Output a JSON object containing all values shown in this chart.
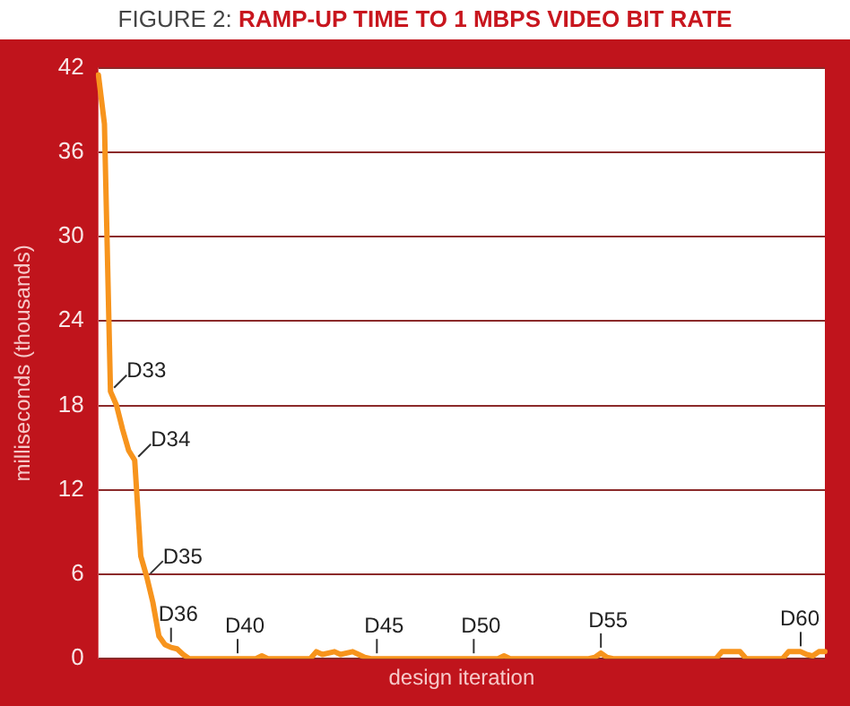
{
  "chart_data": {
    "type": "line",
    "title": "FIGURE 2: RAMP-UP TIME TO 1 MBPS VIDEO BIT RATE",
    "xlabel": "design iteration",
    "ylabel": "milliseconds (thousands)",
    "categories": [
      null,
      null,
      null,
      null,
      null,
      null,
      null,
      null,
      null,
      null,
      null,
      null,
      null,
      null,
      null,
      null,
      null,
      null,
      null,
      null,
      null,
      null,
      null,
      null,
      null,
      null,
      null,
      null,
      null,
      null,
      null,
      null,
      null,
      null,
      null,
      null,
      null,
      null,
      null,
      null,
      null,
      null,
      null,
      null,
      null,
      null,
      null,
      null,
      null,
      null,
      null,
      null,
      null,
      null,
      null,
      null,
      null,
      null,
      null,
      null,
      null,
      null,
      null,
      null,
      null,
      null,
      null,
      null,
      null,
      null,
      null,
      null,
      null,
      null,
      null,
      null,
      null,
      null,
      null,
      null,
      null,
      null,
      null,
      null,
      null,
      null,
      null,
      null,
      null,
      null,
      null,
      null,
      null,
      null,
      null,
      null,
      null,
      null,
      null,
      null,
      null,
      null,
      null,
      null,
      null,
      null,
      null,
      null,
      null,
      null,
      null,
      null,
      null,
      null,
      null,
      null,
      null,
      null,
      null,
      null,
      null
    ],
    "series": [
      {
        "color": "#f7941d",
        "values": [
          41.5,
          38,
          19,
          18,
          16.3,
          14.8,
          14.1,
          7.3,
          5.8,
          4,
          1.6,
          1,
          0.8,
          0.7,
          0.3,
          0,
          0,
          0,
          0,
          0,
          0,
          0,
          0,
          0,
          0,
          0,
          0,
          0.2,
          0,
          0,
          0,
          0,
          0,
          0,
          0,
          0,
          0.5,
          0.3,
          0.4,
          0.5,
          0.3,
          0.4,
          0.5,
          0.3,
          0.1,
          0,
          0,
          0,
          0,
          0,
          0,
          0,
          0,
          0,
          0,
          0,
          0,
          0,
          0,
          0,
          0,
          0,
          0,
          0,
          0,
          0,
          0,
          0.2,
          0,
          0,
          0,
          0,
          0,
          0,
          0,
          0,
          0,
          0,
          0,
          0,
          0,
          0,
          0.1,
          0.4,
          0.1,
          0,
          0,
          0,
          0,
          0,
          0,
          0,
          0,
          0,
          0,
          0,
          0,
          0,
          0,
          0,
          0,
          0,
          0,
          0.5,
          0.5,
          0.5,
          0.5,
          0,
          0,
          0,
          0,
          0,
          0,
          0,
          0.5,
          0.5,
          0.5,
          0.3,
          0.2,
          0.5,
          0.5
        ],
        "value_labels": [
          null,
          null,
          "D33",
          null,
          null,
          null,
          "D34",
          null,
          "D35",
          null,
          null,
          null,
          "D36",
          null,
          null,
          null,
          null,
          null,
          null,
          null,
          null,
          null,
          null,
          "D40",
          null,
          null,
          null,
          null,
          null,
          null,
          null,
          null,
          null,
          null,
          null,
          null,
          null,
          null,
          null,
          null,
          null,
          null,
          null,
          null,
          null,
          null,
          "D45",
          null,
          null,
          null,
          null,
          null,
          null,
          null,
          null,
          null,
          null,
          null,
          null,
          null,
          null,
          null,
          "D50",
          null,
          null,
          null,
          null,
          null,
          null,
          null,
          null,
          null,
          null,
          null,
          null,
          null,
          null,
          null,
          null,
          null,
          null,
          null,
          null,
          "D55",
          null,
          null,
          null,
          null,
          null,
          null,
          null,
          null,
          null,
          null,
          null,
          null,
          null,
          null,
          null,
          null,
          null,
          null,
          null,
          null,
          null,
          null,
          null,
          null,
          null,
          null,
          null,
          null,
          null,
          null,
          null,
          null,
          "D60",
          null,
          null,
          null,
          null
        ]
      }
    ],
    "ylim": [
      0,
      42
    ],
    "yticks": [
      0,
      6,
      12,
      18,
      24,
      30,
      36,
      42
    ],
    "grid": "y",
    "tick_labels": "y",
    "marker": "none",
    "line_style": "solid"
  }
}
